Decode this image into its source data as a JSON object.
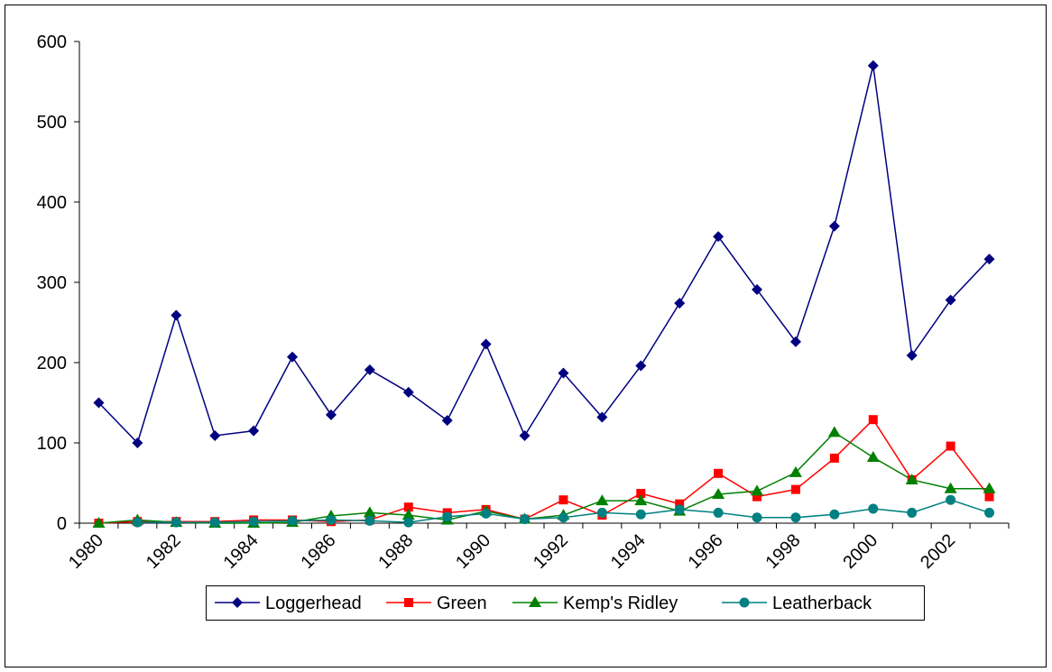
{
  "chart_data": {
    "type": "line",
    "categories": [
      "1980",
      null,
      "1982",
      null,
      "1984",
      null,
      "1986",
      null,
      "1988",
      null,
      "1990",
      null,
      "1992",
      null,
      "1994",
      null,
      "1996",
      null,
      "1998",
      null,
      "2000",
      null,
      "2002",
      null
    ],
    "series": [
      {
        "name": "Loggerhead",
        "color": "#000080",
        "marker": "diamond",
        "values": [
          150,
          100,
          259,
          109,
          115,
          207,
          135,
          191,
          163,
          128,
          223,
          109,
          187,
          132,
          196,
          274,
          357,
          291,
          226,
          370,
          570,
          209,
          278,
          329
        ]
      },
      {
        "name": "Green",
        "color": "#ff0000",
        "marker": "square",
        "values": [
          0,
          2,
          2,
          2,
          4,
          4,
          2,
          4,
          20,
          13,
          17,
          5,
          29,
          10,
          37,
          24,
          62,
          33,
          42,
          81,
          129,
          54,
          96,
          33
        ]
      },
      {
        "name": "Kemp's Ridley",
        "color": "#008000",
        "marker": "triangle",
        "values": [
          0,
          4,
          1,
          0,
          0,
          1,
          9,
          13,
          10,
          4,
          15,
          5,
          10,
          28,
          28,
          15,
          36,
          40,
          63,
          113,
          82,
          54,
          43,
          43
        ]
      },
      {
        "name": "Leatherback",
        "color": "#008080",
        "marker": "circle",
        "values": [
          null,
          1,
          1,
          1,
          2,
          3,
          4,
          3,
          1,
          8,
          12,
          5,
          7,
          13,
          11,
          17,
          13,
          7,
          7,
          11,
          18,
          13,
          29,
          13
        ]
      }
    ],
    "ylim": [
      0,
      600
    ],
    "yticks": [
      0,
      100,
      200,
      300,
      400,
      500,
      600
    ],
    "legend": "bottom"
  }
}
